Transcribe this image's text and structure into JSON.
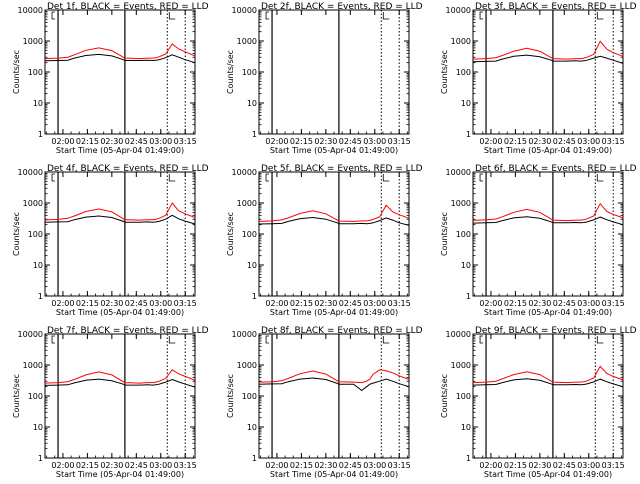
{
  "figure": {
    "ylabel": "Counts/sec",
    "xlabel": "Start Time (05-Apr-04 01:49:00)",
    "x_ticks": [
      "02:00",
      "02:15",
      "02:30",
      "02:45",
      "03:00",
      "03:15"
    ],
    "y_ticks": [
      "1",
      "10",
      "100",
      "1000",
      "10000"
    ],
    "colors": {
      "events": "#000000",
      "lld": "#ff0000",
      "axes": "#000000"
    }
  },
  "chart_data": [
    {
      "type": "line",
      "title": "Det 1f, BLACK = Events, RED = LLD",
      "xlabel": "Start Time (05-Apr-04 01:49:00)",
      "ylabel": "Counts/sec",
      "y_scale": "log",
      "ylim": [
        1,
        10000
      ],
      "xlim_minutes": [
        0,
        92
      ],
      "solid_markers": [
        8,
        49
      ],
      "dotted_markers": [
        75,
        86
      ],
      "series": [
        {
          "name": "Events",
          "x": [
            0,
            8,
            14,
            18,
            25,
            33,
            41,
            48,
            49,
            58,
            63,
            66,
            68,
            70,
            74,
            78,
            82,
            86,
            92
          ],
          "y": [
            230,
            235,
            240,
            280,
            340,
            370,
            330,
            250,
            235,
            235,
            240,
            235,
            240,
            250,
            290,
            360,
            300,
            250,
            200
          ]
        },
        {
          "name": "LLD",
          "x": [
            0,
            8,
            14,
            18,
            25,
            33,
            41,
            48,
            49,
            58,
            63,
            66,
            68,
            70,
            74,
            78,
            82,
            86,
            92
          ],
          "y": [
            270,
            280,
            300,
            360,
            500,
            600,
            490,
            300,
            280,
            270,
            280,
            280,
            290,
            310,
            380,
            800,
            550,
            450,
            330
          ]
        }
      ]
    },
    {
      "type": "line",
      "title": "Det 2f, BLACK = Events, RED = LLD",
      "xlabel": "Start Time (05-Apr-04 01:49:00)",
      "ylabel": "Counts/sec",
      "y_scale": "log",
      "ylim": [
        1,
        10000
      ],
      "xlim_minutes": [
        0,
        92
      ],
      "solid_markers": [
        8,
        49
      ],
      "dotted_markers": [
        75,
        86
      ],
      "series": []
    },
    {
      "type": "line",
      "title": "Det 3f, BLACK = Events, RED = LLD",
      "xlabel": "Start Time (05-Apr-04 01:49:00)",
      "ylabel": "Counts/sec",
      "y_scale": "log",
      "ylim": [
        1,
        10000
      ],
      "xlim_minutes": [
        0,
        92
      ],
      "solid_markers": [
        8,
        49
      ],
      "dotted_markers": [
        75,
        86
      ],
      "series": [
        {
          "name": "Events",
          "x": [
            0,
            8,
            14,
            18,
            25,
            33,
            41,
            48,
            49,
            58,
            63,
            66,
            68,
            70,
            74,
            78,
            82,
            86,
            92
          ],
          "y": [
            215,
            220,
            225,
            260,
            320,
            350,
            310,
            240,
            225,
            225,
            230,
            225,
            230,
            240,
            280,
            320,
            280,
            240,
            190
          ]
        },
        {
          "name": "LLD",
          "x": [
            0,
            8,
            14,
            18,
            25,
            33,
            41,
            48,
            49,
            58,
            63,
            66,
            68,
            70,
            74,
            78,
            82,
            86,
            92
          ],
          "y": [
            260,
            270,
            290,
            340,
            470,
            580,
            470,
            290,
            270,
            260,
            270,
            270,
            280,
            300,
            370,
            980,
            550,
            420,
            320
          ]
        }
      ]
    },
    {
      "type": "line",
      "title": "Det 4f, BLACK = Events, RED = LLD",
      "xlabel": "Start Time (05-Apr-04 01:49:00)",
      "ylabel": "Counts/sec",
      "y_scale": "log",
      "ylim": [
        1,
        10000
      ],
      "xlim_minutes": [
        0,
        92
      ],
      "solid_markers": [
        8,
        49
      ],
      "dotted_markers": [
        75,
        86
      ],
      "series": [
        {
          "name": "Events",
          "x": [
            0,
            8,
            14,
            18,
            25,
            33,
            41,
            48,
            49,
            58,
            63,
            66,
            68,
            70,
            74,
            78,
            82,
            86,
            92
          ],
          "y": [
            240,
            245,
            250,
            290,
            350,
            380,
            340,
            255,
            240,
            240,
            245,
            240,
            245,
            255,
            300,
            400,
            310,
            260,
            210
          ]
        },
        {
          "name": "LLD",
          "x": [
            0,
            8,
            14,
            18,
            25,
            33,
            41,
            48,
            49,
            58,
            63,
            66,
            68,
            70,
            74,
            78,
            82,
            86,
            92
          ],
          "y": [
            285,
            295,
            320,
            380,
            530,
            640,
            520,
            310,
            290,
            280,
            290,
            290,
            300,
            320,
            400,
            1000,
            560,
            450,
            340
          ]
        }
      ]
    },
    {
      "type": "line",
      "title": "Det 5f, BLACK = Events, RED = LLD",
      "xlabel": "Start Time (05-Apr-04 01:49:00)",
      "ylabel": "Counts/sec",
      "y_scale": "log",
      "ylim": [
        1,
        10000
      ],
      "xlim_minutes": [
        0,
        92
      ],
      "solid_markers": [
        8,
        49
      ],
      "dotted_markers": [
        75,
        86
      ],
      "series": [
        {
          "name": "Events",
          "x": [
            0,
            8,
            14,
            18,
            25,
            33,
            41,
            48,
            49,
            58,
            63,
            66,
            68,
            70,
            74,
            78,
            82,
            86,
            92
          ],
          "y": [
            210,
            215,
            220,
            255,
            310,
            340,
            300,
            230,
            215,
            215,
            220,
            215,
            220,
            230,
            270,
            330,
            280,
            230,
            190
          ]
        },
        {
          "name": "LLD",
          "x": [
            0,
            8,
            14,
            18,
            25,
            33,
            41,
            48,
            49,
            58,
            63,
            66,
            68,
            70,
            74,
            78,
            82,
            86,
            92
          ],
          "y": [
            255,
            265,
            285,
            330,
            460,
            560,
            450,
            280,
            260,
            255,
            265,
            265,
            275,
            295,
            360,
            850,
            520,
            420,
            320
          ]
        }
      ]
    },
    {
      "type": "line",
      "title": "Det 6f, BLACK = Events, RED = LLD",
      "xlabel": "Start Time (05-Apr-04 01:49:00)",
      "ylabel": "Counts/sec",
      "y_scale": "log",
      "ylim": [
        1,
        10000
      ],
      "xlim_minutes": [
        0,
        92
      ],
      "solid_markers": [
        8,
        49
      ],
      "dotted_markers": [
        75,
        86
      ],
      "series": [
        {
          "name": "Events",
          "x": [
            0,
            8,
            14,
            18,
            25,
            33,
            41,
            48,
            49,
            58,
            63,
            66,
            68,
            70,
            74,
            78,
            82,
            86,
            92
          ],
          "y": [
            225,
            230,
            235,
            270,
            330,
            360,
            320,
            245,
            230,
            230,
            235,
            230,
            235,
            245,
            285,
            350,
            290,
            245,
            200
          ]
        },
        {
          "name": "LLD",
          "x": [
            0,
            8,
            14,
            18,
            25,
            33,
            41,
            48,
            49,
            58,
            63,
            66,
            68,
            70,
            74,
            78,
            82,
            86,
            92
          ],
          "y": [
            275,
            285,
            305,
            360,
            500,
            620,
            500,
            300,
            280,
            270,
            280,
            280,
            290,
            310,
            380,
            950,
            540,
            430,
            330
          ]
        }
      ]
    },
    {
      "type": "line",
      "title": "Det 7f, BLACK = Events, RED = LLD",
      "xlabel": "Start Time (05-Apr-04 01:49:00)",
      "ylabel": "Counts/sec",
      "y_scale": "log",
      "ylim": [
        1,
        10000
      ],
      "xlim_minutes": [
        0,
        92
      ],
      "solid_markers": [
        8,
        49
      ],
      "dotted_markers": [
        75,
        86
      ],
      "series": [
        {
          "name": "Events",
          "x": [
            0,
            8,
            14,
            18,
            25,
            33,
            41,
            48,
            49,
            58,
            63,
            66,
            68,
            70,
            74,
            78,
            82,
            86,
            92
          ],
          "y": [
            220,
            225,
            230,
            265,
            320,
            350,
            310,
            240,
            225,
            225,
            230,
            225,
            230,
            240,
            280,
            340,
            285,
            240,
            195
          ]
        },
        {
          "name": "LLD",
          "x": [
            0,
            8,
            14,
            18,
            25,
            33,
            41,
            48,
            49,
            58,
            63,
            66,
            68,
            70,
            74,
            78,
            82,
            86,
            92
          ],
          "y": [
            260,
            270,
            290,
            340,
            480,
            600,
            480,
            290,
            270,
            260,
            270,
            270,
            280,
            300,
            370,
            700,
            520,
            430,
            320
          ]
        }
      ]
    },
    {
      "type": "line",
      "title": "Det 8f, BLACK = Events, RED = LLD",
      "xlabel": "Start Time (05-Apr-04 01:49:00)",
      "ylabel": "Counts/sec",
      "y_scale": "log",
      "ylim": [
        1,
        10000
      ],
      "xlim_minutes": [
        0,
        92
      ],
      "solid_markers": [
        8,
        49
      ],
      "dotted_markers": [
        75,
        86
      ],
      "series": [
        {
          "name": "Events",
          "x": [
            0,
            8,
            14,
            18,
            25,
            33,
            41,
            48,
            49,
            58,
            63,
            66,
            68,
            70,
            74,
            78,
            82,
            86,
            92
          ],
          "y": [
            240,
            245,
            250,
            290,
            350,
            380,
            340,
            255,
            240,
            240,
            150,
            200,
            240,
            260,
            300,
            350,
            300,
            250,
            200
          ]
        },
        {
          "name": "LLD",
          "x": [
            0,
            8,
            14,
            18,
            25,
            33,
            41,
            48,
            49,
            58,
            63,
            66,
            68,
            70,
            74,
            78,
            82,
            86,
            92
          ],
          "y": [
            280,
            290,
            310,
            370,
            520,
            640,
            510,
            310,
            290,
            280,
            270,
            300,
            350,
            500,
            700,
            650,
            560,
            450,
            340
          ]
        }
      ]
    },
    {
      "type": "line",
      "title": "Det 9f, BLACK = Events, RED = LLD",
      "xlabel": "Start Time (05-Apr-04 01:49:00)",
      "ylabel": "Counts/sec",
      "y_scale": "log",
      "ylim": [
        1,
        10000
      ],
      "xlim_minutes": [
        0,
        92
      ],
      "solid_markers": [
        8,
        49
      ],
      "dotted_markers": [
        75,
        86
      ],
      "series": [
        {
          "name": "Events",
          "x": [
            0,
            8,
            14,
            18,
            25,
            33,
            41,
            48,
            49,
            58,
            63,
            66,
            68,
            70,
            74,
            78,
            82,
            86,
            92
          ],
          "y": [
            225,
            230,
            235,
            270,
            330,
            360,
            320,
            245,
            230,
            230,
            235,
            230,
            235,
            245,
            285,
            350,
            290,
            245,
            200
          ]
        },
        {
          "name": "LLD",
          "x": [
            0,
            8,
            14,
            18,
            25,
            33,
            41,
            48,
            49,
            58,
            63,
            66,
            68,
            70,
            74,
            78,
            82,
            86,
            92
          ],
          "y": [
            270,
            280,
            300,
            355,
            490,
            610,
            490,
            300,
            280,
            270,
            280,
            280,
            290,
            310,
            380,
            900,
            540,
            430,
            330
          ]
        }
      ]
    }
  ]
}
